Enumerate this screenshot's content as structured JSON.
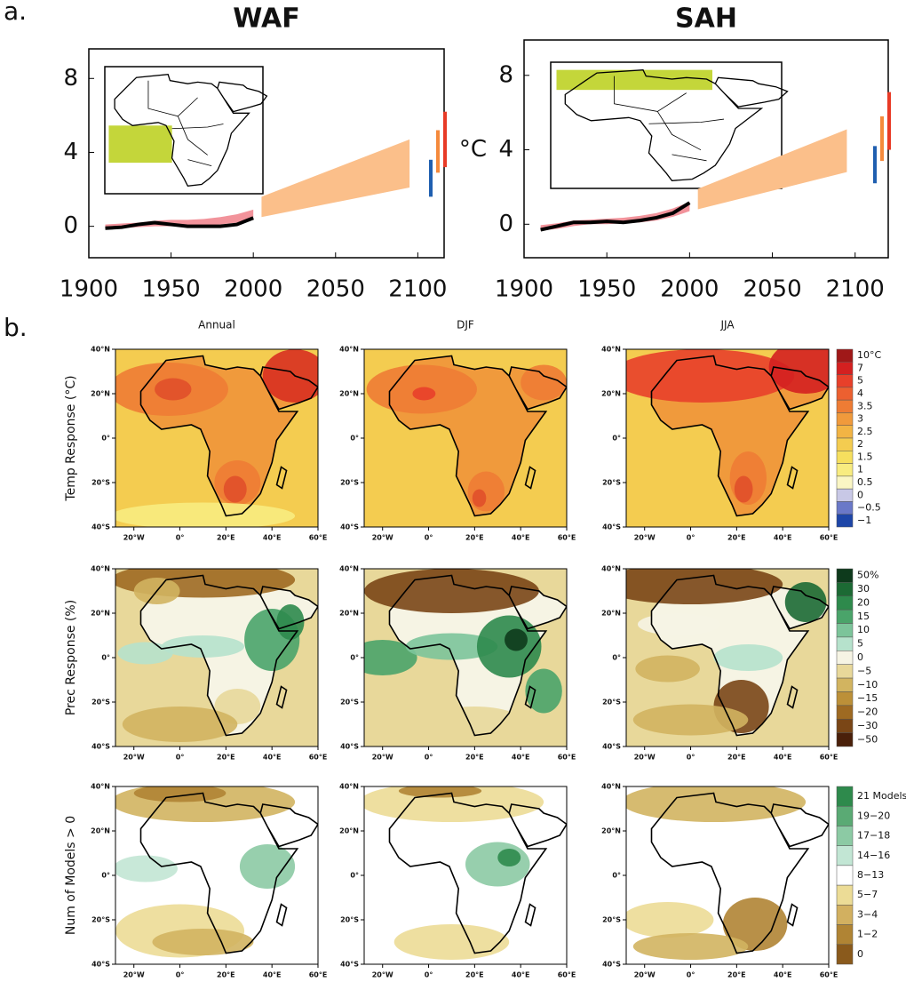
{
  "panel_a": "a.",
  "chart_data": [
    {
      "type": "line",
      "title": "WAF",
      "xlim": [
        1900,
        2116
      ],
      "ylim": [
        -1.7,
        9.6
      ],
      "xticks": [
        1900,
        1950,
        2000,
        2050,
        2100
      ],
      "yticks": [
        0,
        4,
        8
      ],
      "series": [
        {
          "kind": "band",
          "color": "#f2939b",
          "x": [
            1910,
            1920,
            1930,
            1940,
            1950,
            1960,
            1970,
            1980,
            1990,
            2000
          ],
          "lower": [
            -0.15,
            -0.1,
            -0.05,
            0.0,
            0.0,
            0.0,
            0.05,
            0.1,
            0.2,
            0.35
          ],
          "upper": [
            0.1,
            0.15,
            0.2,
            0.3,
            0.35,
            0.35,
            0.4,
            0.5,
            0.65,
            0.9
          ]
        },
        {
          "kind": "band",
          "color": "#fbbf8a",
          "x": [
            2005,
            2095
          ],
          "lower": [
            0.5,
            2.1
          ],
          "upper": [
            1.6,
            4.7
          ]
        },
        {
          "kind": "line",
          "color": "#000000",
          "x": [
            1910,
            1920,
            1930,
            1940,
            1950,
            1960,
            1970,
            1980,
            1990,
            2000
          ],
          "values": [
            -0.1,
            -0.05,
            0.1,
            0.2,
            0.1,
            0.0,
            0.0,
            0.0,
            0.1,
            0.45
          ]
        }
      ],
      "ranges": [
        {
          "color": "#1f5fb0",
          "low": 1.6,
          "high": 3.6
        },
        {
          "color": "#f58a3c",
          "low": 2.9,
          "high": 5.2
        },
        {
          "color": "#e83a26",
          "low": 3.2,
          "high": 6.2
        }
      ]
    },
    {
      "type": "line",
      "title": "SAH",
      "ylabel": "°C",
      "xlim": [
        1900,
        2120
      ],
      "ylim": [
        -1.8,
        9.9
      ],
      "xticks": [
        1900,
        1950,
        2000,
        2050,
        2100
      ],
      "yticks": [
        0,
        4,
        8
      ],
      "series": [
        {
          "kind": "band",
          "color": "#f2939b",
          "x": [
            1910,
            1920,
            1930,
            1940,
            1950,
            1960,
            1970,
            1980,
            1990,
            2000
          ],
          "lower": [
            -0.35,
            -0.25,
            -0.1,
            0.0,
            0.0,
            0.05,
            0.1,
            0.2,
            0.4,
            0.7
          ],
          "upper": [
            -0.05,
            0.05,
            0.2,
            0.25,
            0.3,
            0.35,
            0.45,
            0.6,
            0.85,
            1.2
          ]
        },
        {
          "kind": "band",
          "color": "#fbbf8a",
          "x": [
            2005,
            2095
          ],
          "lower": [
            0.8,
            2.8
          ],
          "upper": [
            1.9,
            5.1
          ]
        },
        {
          "kind": "line",
          "color": "#000000",
          "x": [
            1910,
            1920,
            1930,
            1940,
            1950,
            1960,
            1970,
            1980,
            1990,
            2000
          ],
          "values": [
            -0.3,
            -0.1,
            0.1,
            0.1,
            0.15,
            0.1,
            0.2,
            0.35,
            0.6,
            1.15
          ]
        }
      ],
      "ranges": [
        {
          "color": "#1f5fb0",
          "low": 2.2,
          "high": 4.2
        },
        {
          "color": "#f58a3c",
          "low": 3.4,
          "high": 5.8
        },
        {
          "color": "#e83a26",
          "low": 4.0,
          "high": 7.1
        }
      ]
    }
  ],
  "maps": {
    "panel_label": "b.",
    "columns": [
      "Annual",
      "DJF",
      "JJA"
    ],
    "lat_labels": [
      "40°N",
      "20°N",
      "0°",
      "20°S",
      "40°S"
    ],
    "lon_labels": [
      "20°W",
      "0°",
      "20°E",
      "40°E",
      "60°E"
    ],
    "rows": [
      {
        "label": "Temp Response (°C)",
        "legend": {
          "labels": [
            "10°C",
            "7",
            "5",
            "4",
            "3.5",
            "3",
            "2.5",
            "2",
            "1.5",
            "1",
            "0.5",
            "0",
            "−0.5",
            "−1"
          ],
          "colors": [
            "#a01818",
            "#d42020",
            "#e8402a",
            "#ec6030",
            "#ee7c34",
            "#f09a3c",
            "#f2b444",
            "#f4cc50",
            "#f6df5e",
            "#f8ec80",
            "#faf6c4",
            "#c8c8e6",
            "#6a78c8",
            "#1e46a8"
          ]
        }
      },
      {
        "label": "Prec Response (%)",
        "legend": {
          "labels": [
            "50%",
            "30",
            "20",
            "15",
            "10",
            "5",
            "0",
            "−5",
            "−10",
            "−15",
            "−20",
            "−30",
            "−50"
          ],
          "colors": [
            "#0e3a1c",
            "#1c6a34",
            "#2e8a4c",
            "#4aa46a",
            "#7cc49a",
            "#b6e2cc",
            "#f6f4e4",
            "#e8d89a",
            "#d2b460",
            "#bc9038",
            "#9e6a22",
            "#7a4616",
            "#4a200a"
          ]
        }
      },
      {
        "label": "Num of Models > 0",
        "legend": {
          "labels": [
            "21 Models",
            "19−20",
            "17−18",
            "14−16",
            "8−13",
            "5−7",
            "3−4",
            "1−2",
            "0"
          ],
          "colors": [
            "#2e8a4c",
            "#5aaa74",
            "#8ccaa4",
            "#c2e6d4",
            "#ffffff",
            "#ecdc96",
            "#d2b060",
            "#b08434",
            "#8a5a1c"
          ]
        }
      }
    ]
  }
}
